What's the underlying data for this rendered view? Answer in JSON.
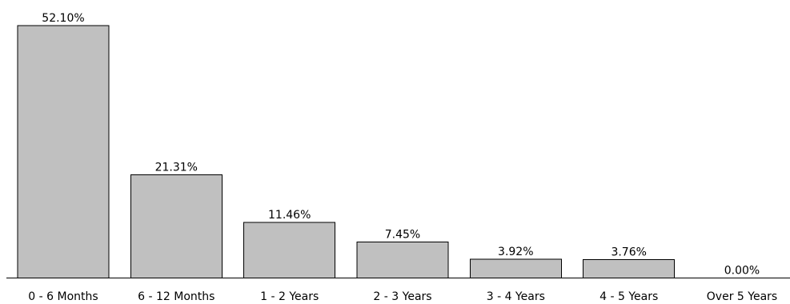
{
  "chart_data": {
    "type": "bar",
    "title": "",
    "xlabel": "",
    "ylabel": "",
    "categories": [
      "0 - 6 Months",
      "6 - 12 Months",
      "1 - 2 Years",
      "2 - 3 Years",
      "3 - 4 Years",
      "4 - 5 Years",
      "Over 5 Years"
    ],
    "values": [
      52.1,
      21.31,
      11.46,
      7.45,
      3.92,
      3.76,
      0.0
    ],
    "value_labels": [
      "52.10%",
      "21.31%",
      "11.46%",
      "7.45%",
      "3.92%",
      "3.76%",
      "0.00%"
    ],
    "ylim": [
      0,
      52.1
    ],
    "grid": false,
    "legend": "none",
    "bar_color": "#c0c0c0",
    "bar_edge_color": "#000000"
  }
}
